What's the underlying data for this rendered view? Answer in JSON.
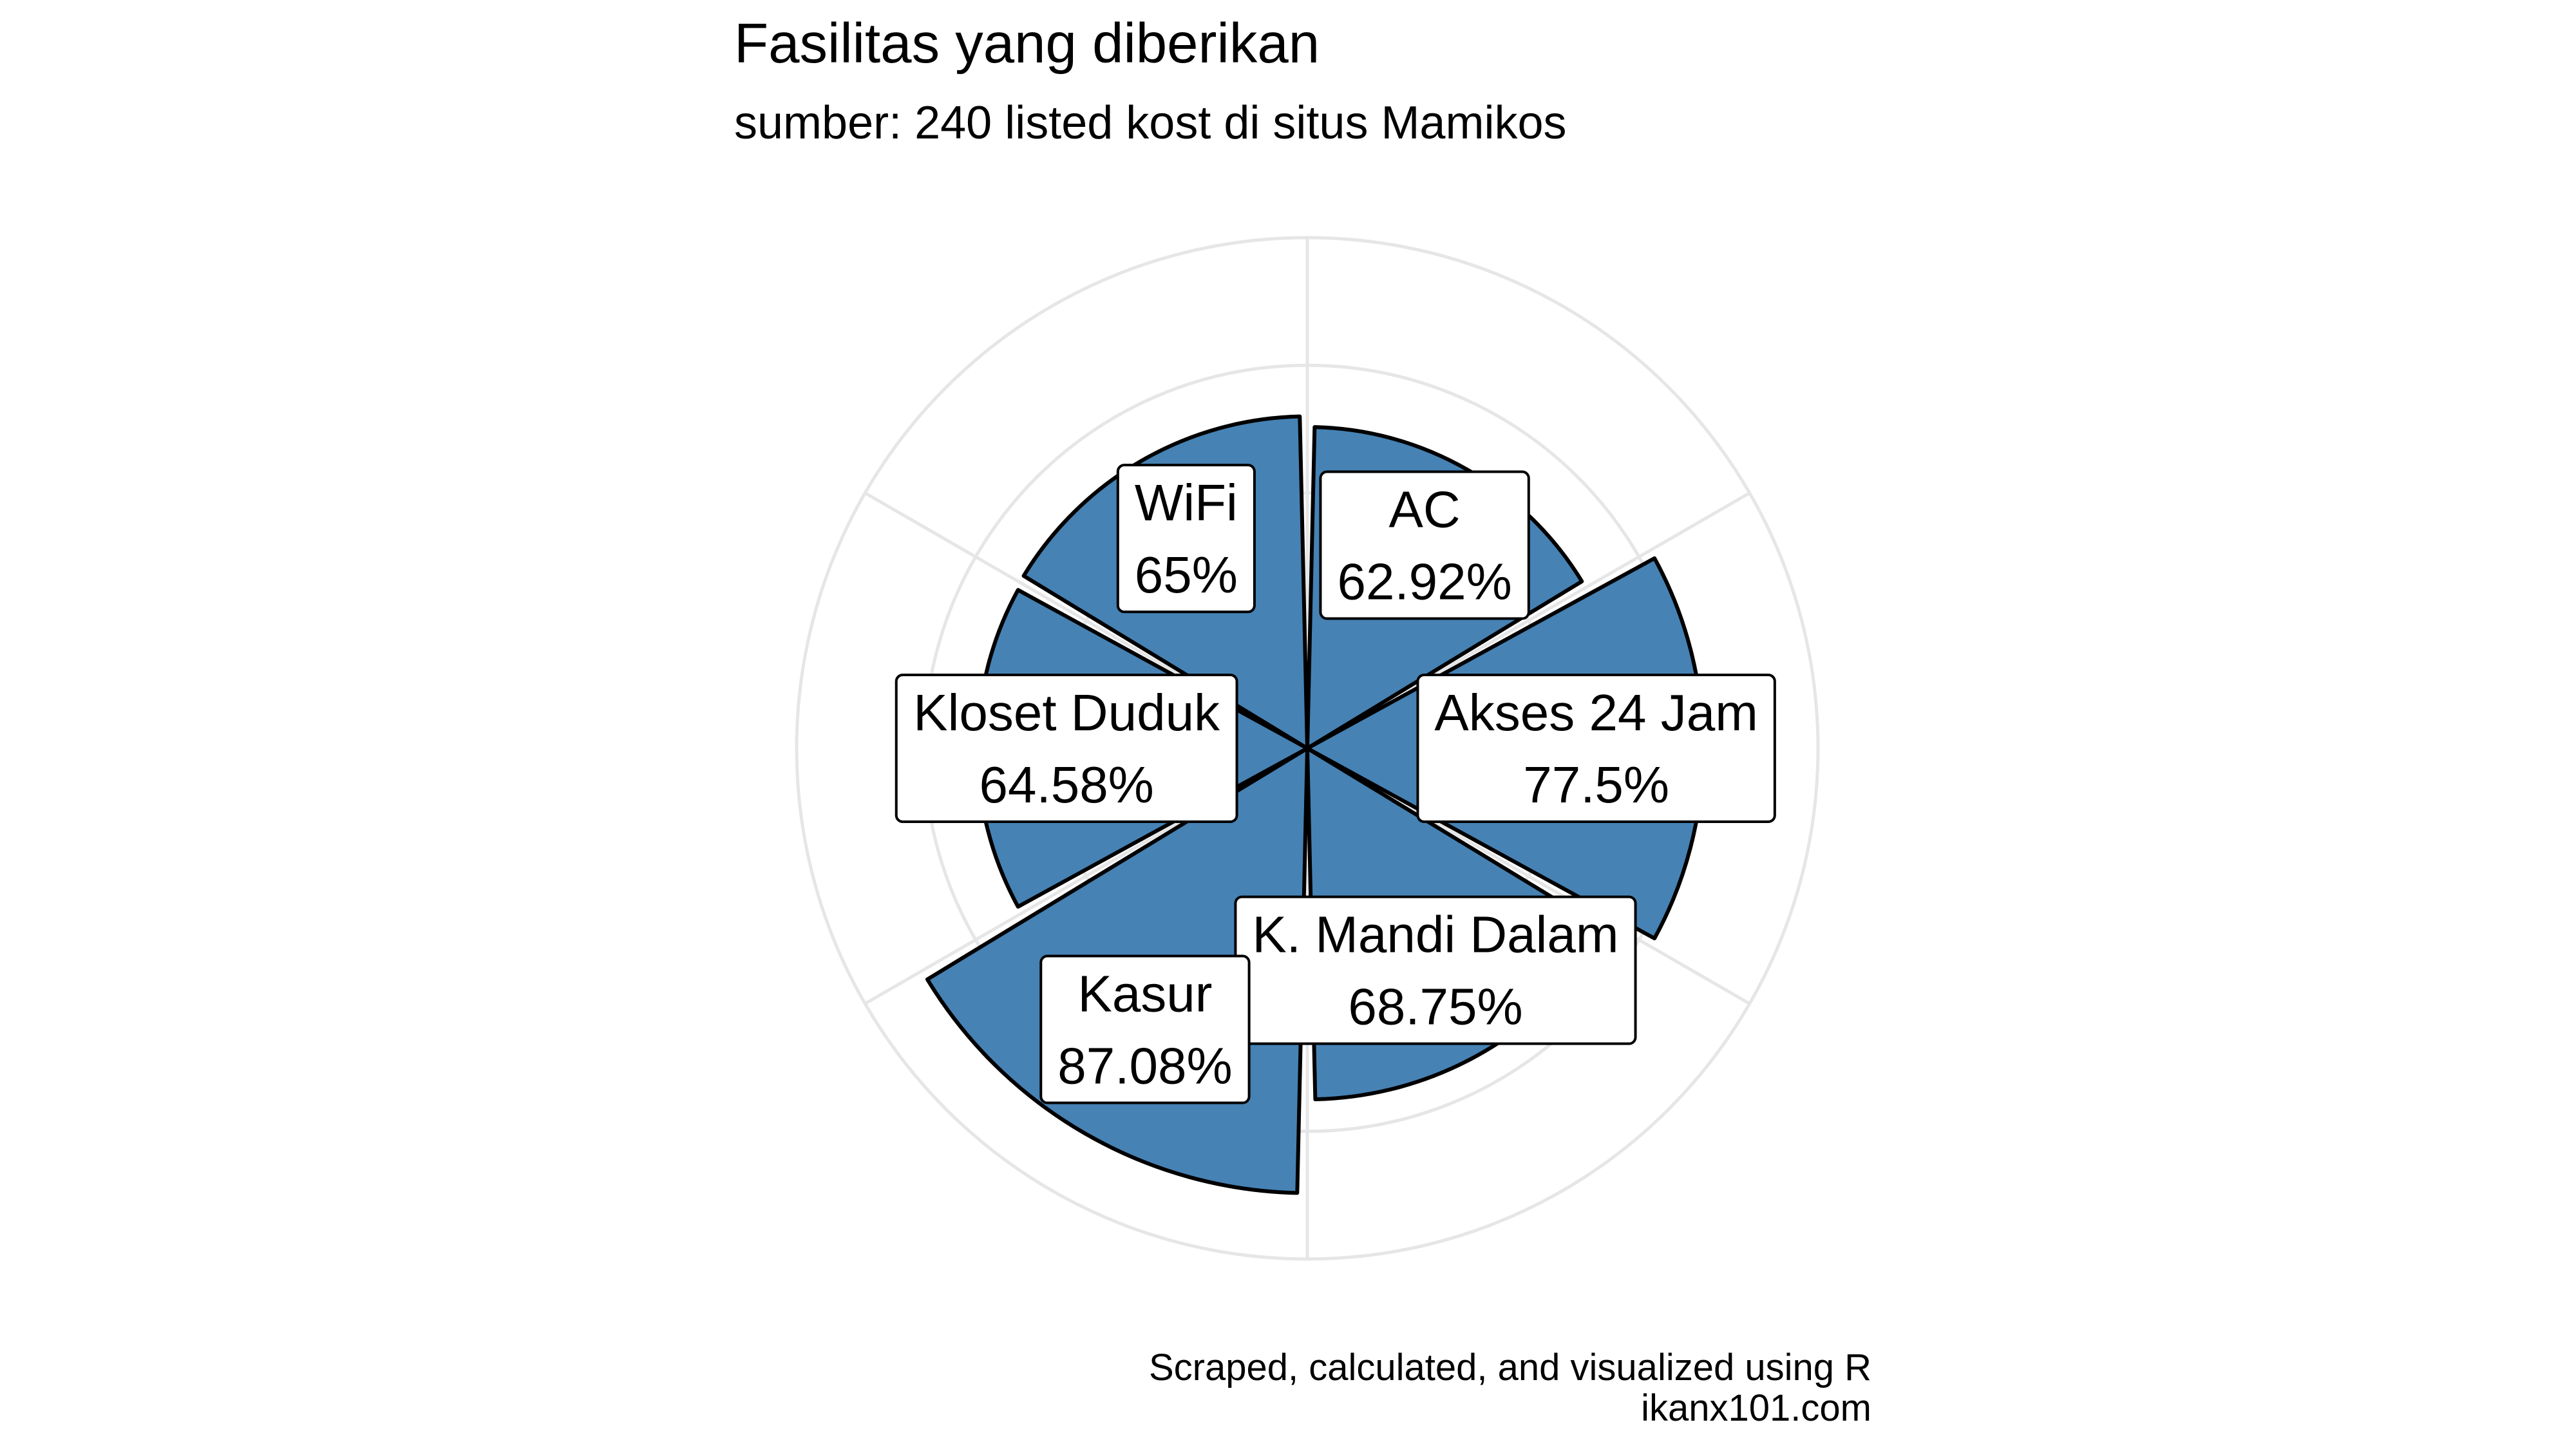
{
  "chart_data": {
    "type": "polar-bar",
    "title": "Fasilitas yang diberikan",
    "subtitle": "sumber: 240 listed kost di situs Mamikos",
    "caption": [
      "Scraped, calculated, and visualized using R",
      "ikanx101.com"
    ],
    "categories": [
      "AC",
      "Akses 24 Jam",
      "K. Mandi Dalam",
      "Kasur",
      "Kloset Duduk",
      "WiFi"
    ],
    "values": [
      62.92,
      77.5,
      68.75,
      87.08,
      64.58,
      65
    ],
    "labels": [
      "62.92%",
      "77.5%",
      "68.75%",
      "87.08%",
      "64.58%",
      "65%"
    ],
    "rlim": [
      0,
      100
    ],
    "grid": true,
    "colors": {
      "bar": "#4682b4",
      "outline": "#000000",
      "grid": "#e6e6e6",
      "label_bg": "#ffffff"
    }
  }
}
